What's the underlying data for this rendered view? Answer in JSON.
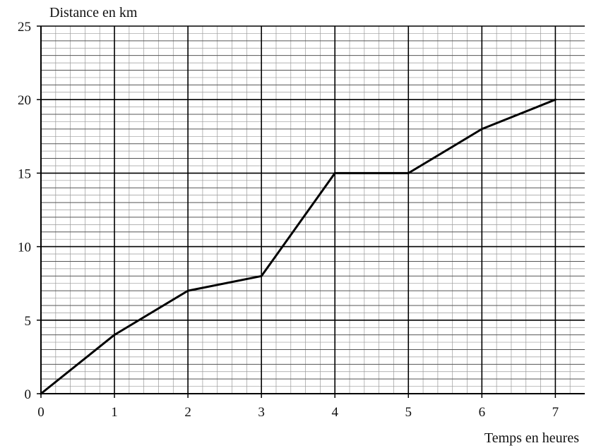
{
  "chart_data": {
    "type": "line",
    "title": "",
    "xlabel": "Temps en heures",
    "ylabel": "Distance en km",
    "xlim": [
      0,
      7.4
    ],
    "ylim": [
      0,
      25
    ],
    "x_ticks": [
      0,
      1,
      2,
      3,
      4,
      5,
      6,
      7
    ],
    "y_ticks": [
      0,
      5,
      10,
      15,
      20,
      25
    ],
    "grid": true,
    "x_minor_step": 0.2,
    "y_minor_step": 0.5,
    "series": [
      {
        "x": [
          0,
          1,
          2,
          3,
          4,
          5,
          6,
          7
        ],
        "y": [
          0,
          4,
          7,
          8,
          15,
          15,
          18,
          20
        ]
      }
    ],
    "colors": {
      "line": "#000000",
      "major_grid": "#000000",
      "minor_grid": "#9a9a9a"
    }
  }
}
